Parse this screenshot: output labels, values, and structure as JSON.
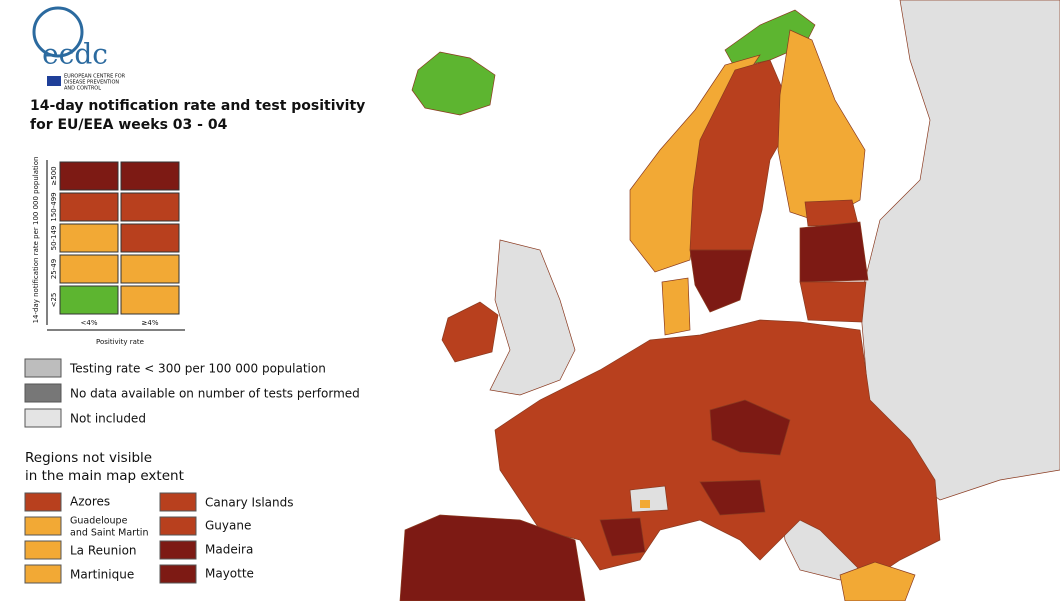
{
  "header": {
    "logo": "ecdc",
    "org": [
      "EUROPEAN CENTRE FOR",
      "DISEASE PREVENTION",
      "AND CONTROL"
    ],
    "title": [
      "14-day notification rate and test positivity",
      "for EU/EEA weeks 03 - 04"
    ]
  },
  "matrix": {
    "y_label": "14-day notification rate per 100 000 population",
    "x_label": "Positivity rate",
    "rows": [
      "≥500",
      "150-499",
      "50-149",
      "25-49",
      "<25"
    ],
    "cols": [
      "<4%",
      "≥4%"
    ]
  },
  "legend": [
    "Testing rate < 300 per 100 000 population",
    "No data available on number of tests performed",
    "Not included"
  ],
  "regions": {
    "title": [
      "Regions not visible",
      "in the main map extent"
    ],
    "items": [
      [
        "Azores",
        "Guadeloupe",
        "and Saint Martin",
        "La Reunion",
        "Martinique"
      ],
      [
        "Canary Islands",
        "Guyane",
        "Madeira",
        "Mayotte"
      ]
    ]
  }
}
